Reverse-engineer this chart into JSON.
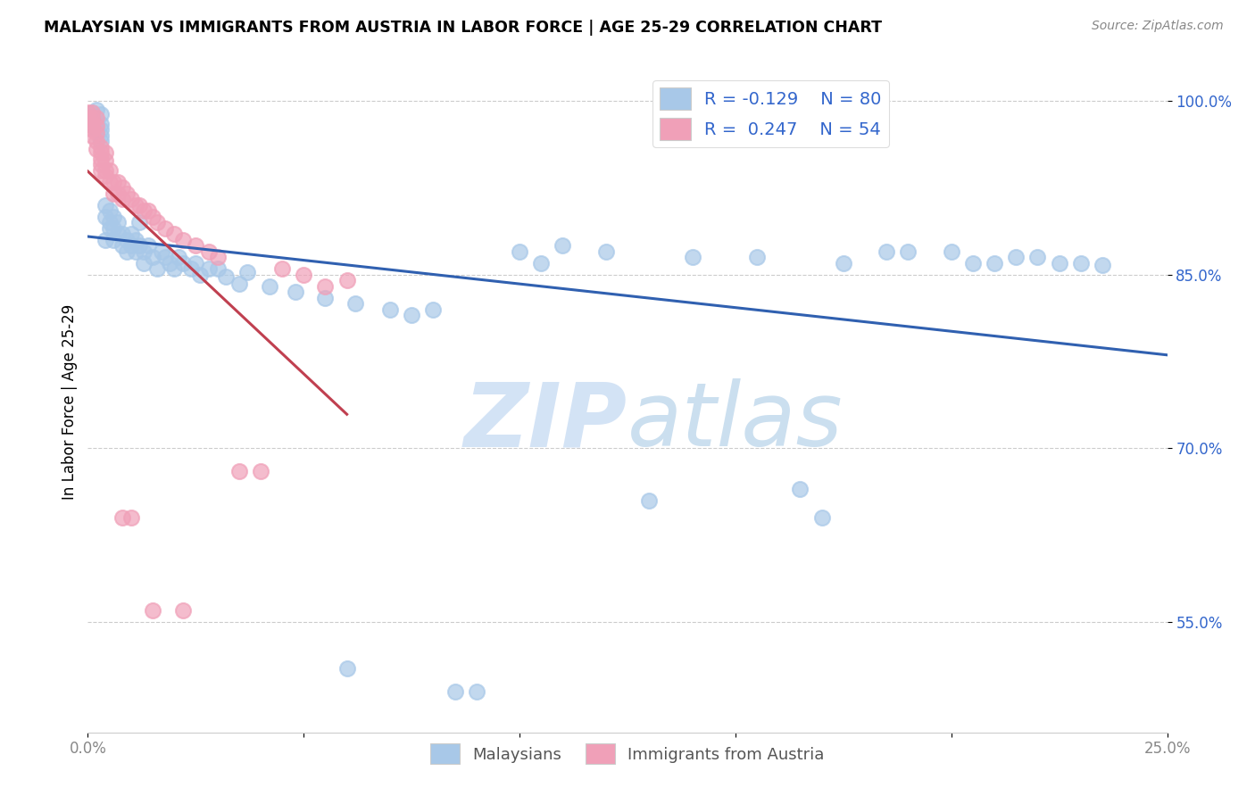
{
  "title": "MALAYSIAN VS IMMIGRANTS FROM AUSTRIA IN LABOR FORCE | AGE 25-29 CORRELATION CHART",
  "source": "Source: ZipAtlas.com",
  "ylabel": "In Labor Force | Age 25-29",
  "xlim": [
    0.0,
    0.25
  ],
  "ylim": [
    0.455,
    1.025
  ],
  "xticks": [
    0.0,
    0.05,
    0.1,
    0.15,
    0.2,
    0.25
  ],
  "xticklabels": [
    "0.0%",
    "",
    "",
    "",
    "",
    "25.0%"
  ],
  "yticks": [
    0.55,
    0.7,
    0.85,
    1.0
  ],
  "yticklabels": [
    "55.0%",
    "70.0%",
    "85.0%",
    "100.0%"
  ],
  "blue_R": -0.129,
  "blue_N": 80,
  "pink_R": 0.247,
  "pink_N": 54,
  "blue_color": "#a8c8e8",
  "pink_color": "#f0a0b8",
  "blue_line_color": "#3060b0",
  "pink_line_color": "#c04050",
  "legend_text_color": "#3366cc",
  "grid_color": "#cccccc",
  "blue_x": [
    0.001,
    0.001,
    0.002,
    0.002,
    0.002,
    0.003,
    0.003,
    0.003,
    0.003,
    0.003,
    0.004,
    0.004,
    0.004,
    0.005,
    0.005,
    0.005,
    0.006,
    0.006,
    0.006,
    0.007,
    0.007,
    0.008,
    0.008,
    0.009,
    0.009,
    0.01,
    0.01,
    0.011,
    0.011,
    0.012,
    0.012,
    0.013,
    0.013,
    0.014,
    0.015,
    0.016,
    0.017,
    0.018,
    0.019,
    0.02,
    0.021,
    0.022,
    0.024,
    0.025,
    0.026,
    0.028,
    0.03,
    0.032,
    0.035,
    0.037,
    0.1,
    0.105,
    0.11,
    0.12,
    0.13,
    0.14,
    0.155,
    0.165,
    0.17,
    0.175,
    0.185,
    0.19,
    0.2,
    0.205,
    0.21,
    0.215,
    0.22,
    0.225,
    0.23,
    0.235,
    0.042,
    0.048,
    0.055,
    0.062,
    0.07,
    0.08,
    0.09,
    0.06,
    0.075,
    0.085
  ],
  "blue_y": [
    0.99,
    0.985,
    0.98,
    0.975,
    0.992,
    0.97,
    0.98,
    0.988,
    0.965,
    0.975,
    0.9,
    0.88,
    0.91,
    0.89,
    0.895,
    0.905,
    0.89,
    0.88,
    0.9,
    0.885,
    0.895,
    0.875,
    0.885,
    0.88,
    0.87,
    0.875,
    0.885,
    0.87,
    0.88,
    0.875,
    0.895,
    0.87,
    0.86,
    0.875,
    0.865,
    0.855,
    0.87,
    0.865,
    0.86,
    0.855,
    0.865,
    0.86,
    0.855,
    0.86,
    0.85,
    0.855,
    0.855,
    0.848,
    0.842,
    0.852,
    0.87,
    0.86,
    0.875,
    0.87,
    0.655,
    0.865,
    0.865,
    0.665,
    0.64,
    0.86,
    0.87,
    0.87,
    0.87,
    0.86,
    0.86,
    0.865,
    0.865,
    0.86,
    0.86,
    0.858,
    0.84,
    0.835,
    0.83,
    0.825,
    0.82,
    0.82,
    0.49,
    0.51,
    0.815,
    0.49
  ],
  "pink_x": [
    0.0,
    0.0,
    0.0,
    0.001,
    0.001,
    0.001,
    0.001,
    0.001,
    0.002,
    0.002,
    0.002,
    0.002,
    0.002,
    0.003,
    0.003,
    0.003,
    0.003,
    0.003,
    0.004,
    0.004,
    0.004,
    0.004,
    0.005,
    0.005,
    0.006,
    0.006,
    0.007,
    0.007,
    0.008,
    0.008,
    0.009,
    0.01,
    0.011,
    0.012,
    0.013,
    0.014,
    0.015,
    0.016,
    0.018,
    0.02,
    0.022,
    0.025,
    0.028,
    0.03,
    0.035,
    0.04,
    0.045,
    0.05,
    0.055,
    0.06,
    0.022,
    0.015,
    0.01,
    0.008
  ],
  "pink_y": [
    0.99,
    0.985,
    0.98,
    0.99,
    0.985,
    0.98,
    0.975,
    0.97,
    0.985,
    0.978,
    0.972,
    0.965,
    0.958,
    0.96,
    0.955,
    0.95,
    0.945,
    0.94,
    0.955,
    0.948,
    0.94,
    0.935,
    0.94,
    0.93,
    0.93,
    0.92,
    0.93,
    0.92,
    0.925,
    0.915,
    0.92,
    0.915,
    0.91,
    0.91,
    0.905,
    0.905,
    0.9,
    0.895,
    0.89,
    0.885,
    0.88,
    0.875,
    0.87,
    0.865,
    0.68,
    0.68,
    0.855,
    0.85,
    0.84,
    0.845,
    0.56,
    0.56,
    0.64,
    0.64
  ]
}
